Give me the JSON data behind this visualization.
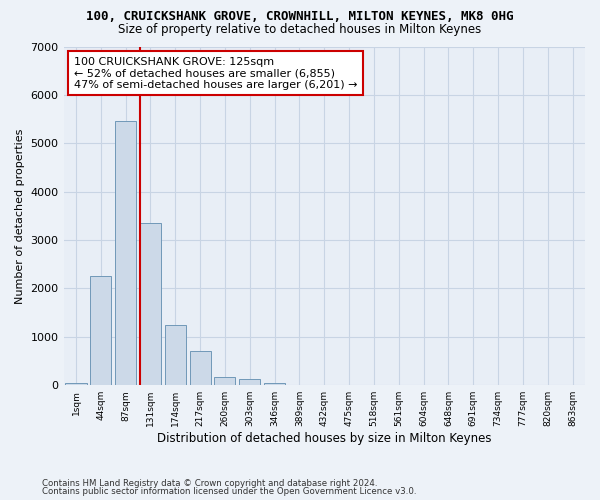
{
  "title_line1": "100, CRUICKSHANK GROVE, CROWNHILL, MILTON KEYNES, MK8 0HG",
  "title_line2": "Size of property relative to detached houses in Milton Keynes",
  "xlabel": "Distribution of detached houses by size in Milton Keynes",
  "ylabel": "Number of detached properties",
  "footer_line1": "Contains HM Land Registry data © Crown copyright and database right 2024.",
  "footer_line2": "Contains public sector information licensed under the Open Government Licence v3.0.",
  "bar_labels": [
    "1sqm",
    "44sqm",
    "87sqm",
    "131sqm",
    "174sqm",
    "217sqm",
    "260sqm",
    "303sqm",
    "346sqm",
    "389sqm",
    "432sqm",
    "475sqm",
    "518sqm",
    "561sqm",
    "604sqm",
    "648sqm",
    "691sqm",
    "734sqm",
    "777sqm",
    "820sqm",
    "863sqm"
  ],
  "bar_values": [
    55,
    2250,
    5450,
    3350,
    1250,
    700,
    175,
    120,
    50,
    10,
    5,
    2,
    0,
    0,
    0,
    0,
    0,
    0,
    0,
    0,
    0
  ],
  "bar_color": "#ccd9e8",
  "bar_edge_color": "#7098b8",
  "ylim": [
    0,
    7000
  ],
  "yticks": [
    0,
    1000,
    2000,
    3000,
    4000,
    5000,
    6000,
    7000
  ],
  "property_line_color": "#cc0000",
  "annotation_text": "100 CRUICKSHANK GROVE: 125sqm\n← 52% of detached houses are smaller (6,855)\n47% of semi-detached houses are larger (6,201) →",
  "annotation_box_color": "#ffffff",
  "annotation_box_edge": "#cc0000",
  "bg_color": "#edf2f8",
  "plot_bg_color": "#e8eef6",
  "grid_color": "#c8d4e4"
}
